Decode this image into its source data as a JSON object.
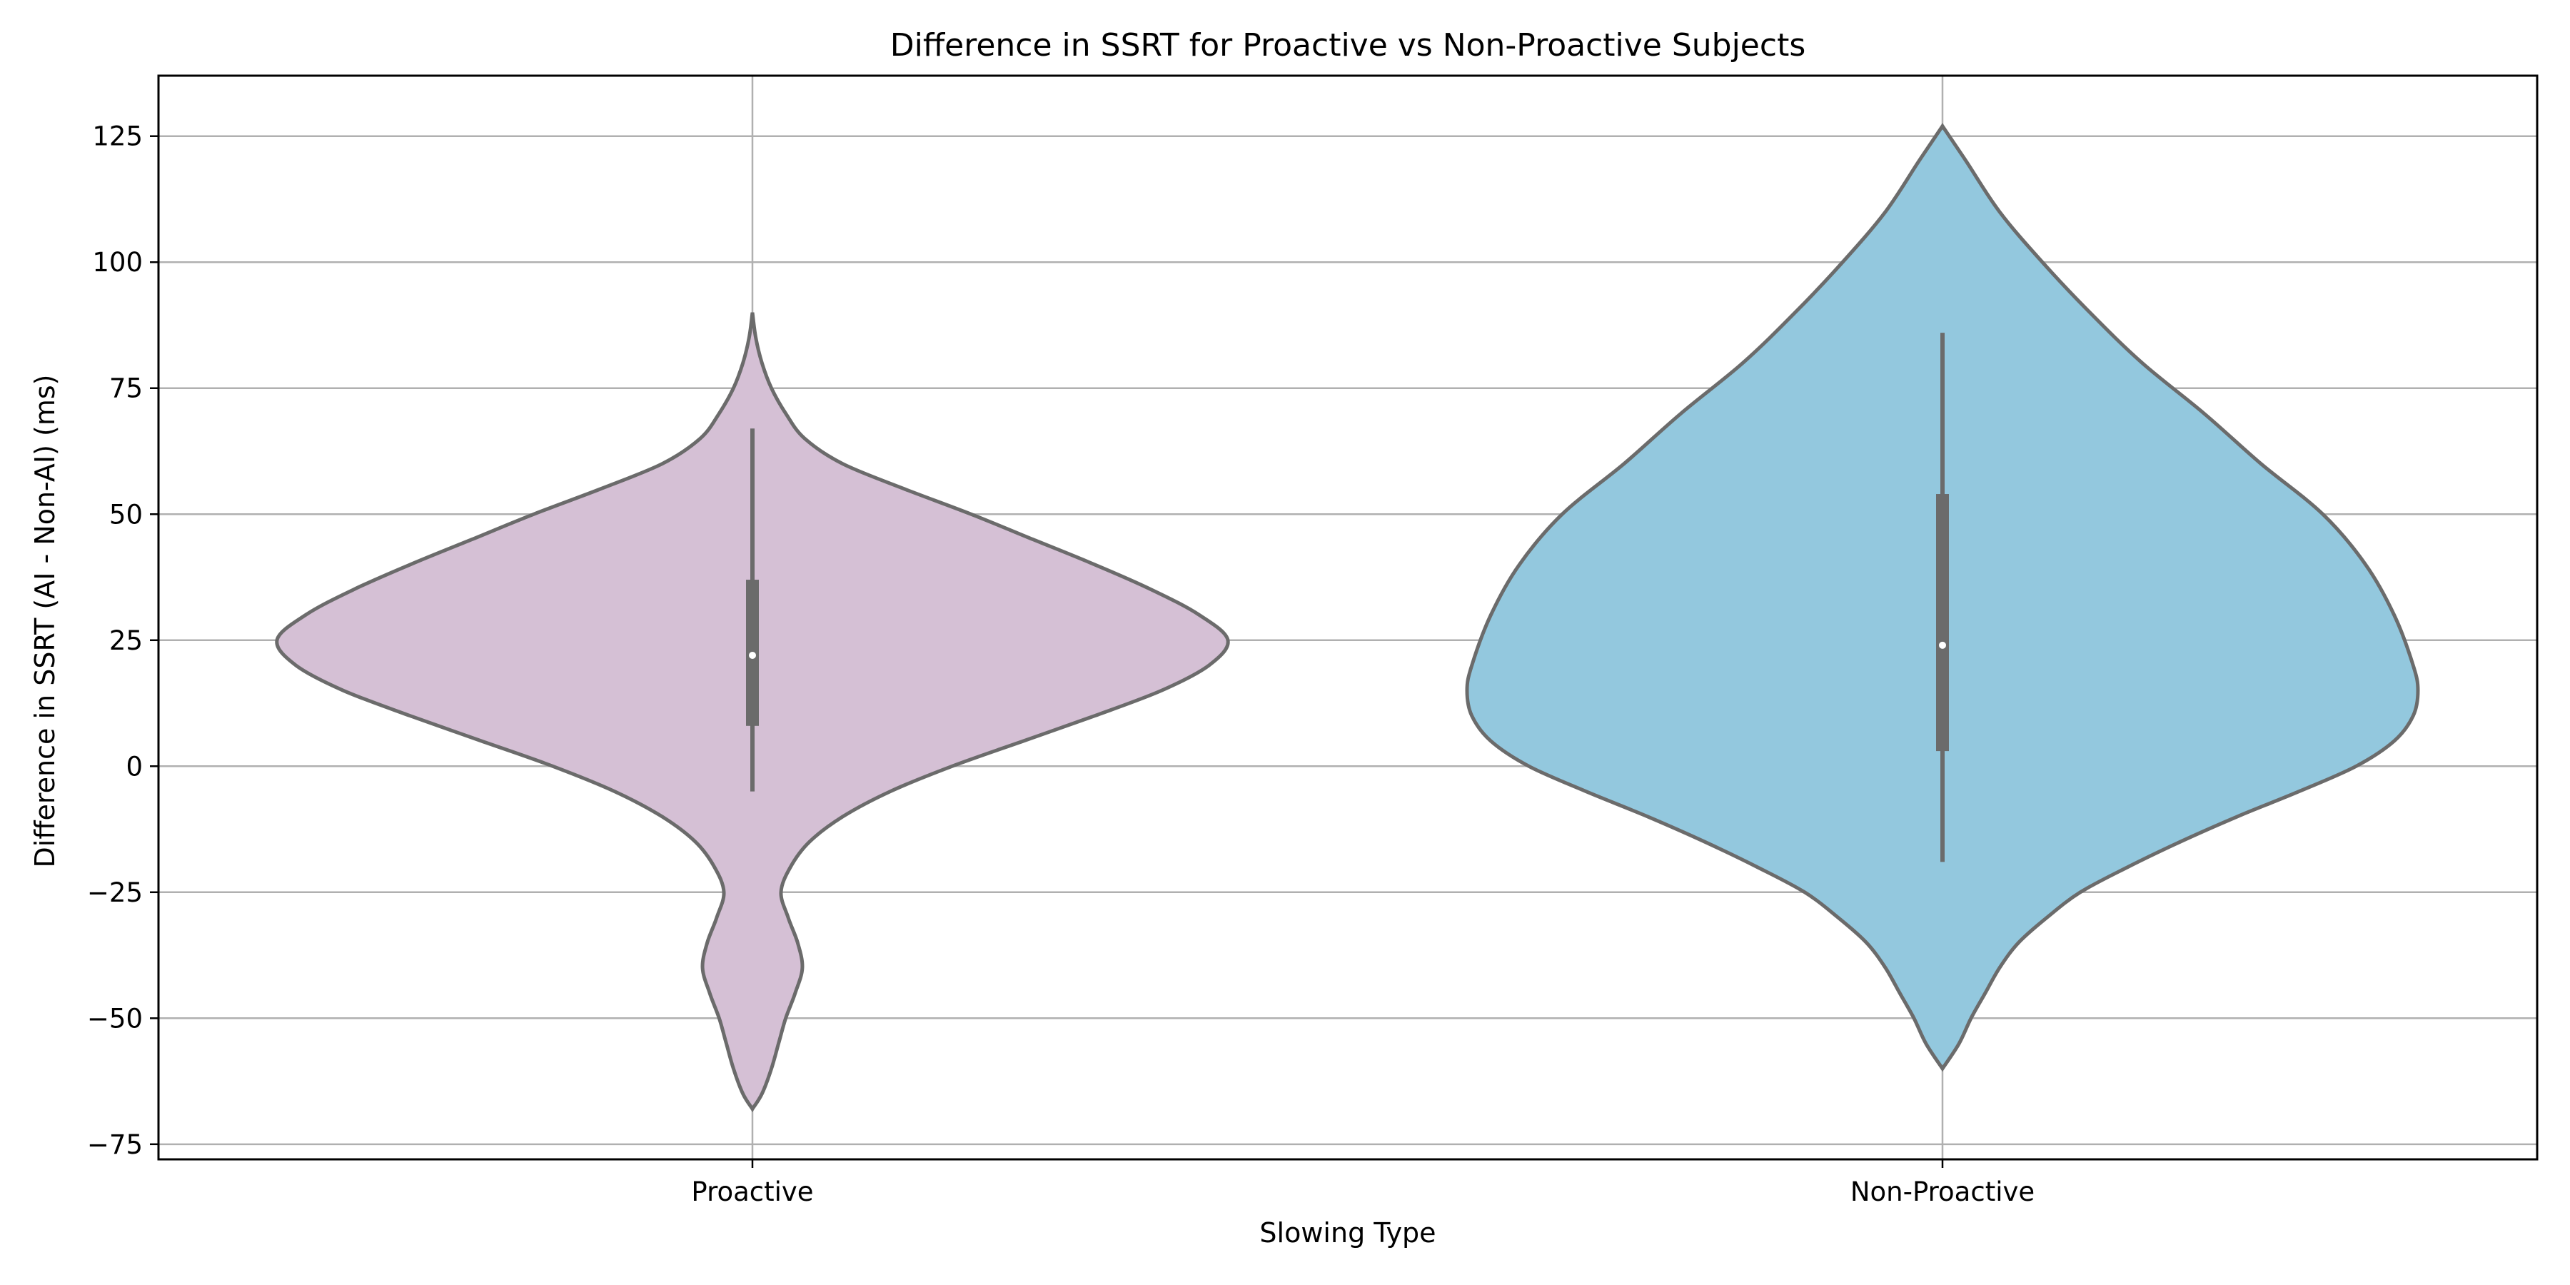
{
  "chart_data": {
    "type": "violin",
    "title": "Difference in SSRT for Proactive vs Non-Proactive Subjects",
    "xlabel": "Slowing Type",
    "ylabel": "Difference in SSRT (AI - Non-AI) (ms)",
    "categories": [
      "Proactive",
      "Non-Proactive"
    ],
    "ylim": [
      -78,
      137
    ],
    "yticks": [
      -75,
      -50,
      -25,
      0,
      25,
      50,
      75,
      100,
      125
    ],
    "ytick_labels": [
      "−75",
      "−50",
      "−25",
      "0",
      "25",
      "50",
      "75",
      "100",
      "125"
    ],
    "grid": true,
    "series": [
      {
        "category": "Proactive",
        "color": "#d5c0d5",
        "range": [
          -68,
          90
        ],
        "whisker": [
          -5,
          67
        ],
        "quartiles": [
          8,
          37
        ],
        "median": 22,
        "density": [
          [
            90,
            0.0
          ],
          [
            85,
            0.007
          ],
          [
            80,
            0.02
          ],
          [
            75,
            0.04
          ],
          [
            70,
            0.07
          ],
          [
            65,
            0.11
          ],
          [
            60,
            0.19
          ],
          [
            55,
            0.32
          ],
          [
            50,
            0.46
          ],
          [
            45,
            0.59
          ],
          [
            40,
            0.72
          ],
          [
            35,
            0.84
          ],
          [
            30,
            0.94
          ],
          [
            25,
            1.0
          ],
          [
            20,
            0.96
          ],
          [
            15,
            0.86
          ],
          [
            10,
            0.72
          ],
          [
            5,
            0.57
          ],
          [
            0,
            0.42
          ],
          [
            -5,
            0.29
          ],
          [
            -10,
            0.19
          ],
          [
            -15,
            0.12
          ],
          [
            -20,
            0.08
          ],
          [
            -25,
            0.06
          ],
          [
            -30,
            0.075
          ],
          [
            -35,
            0.095
          ],
          [
            -40,
            0.105
          ],
          [
            -45,
            0.09
          ],
          [
            -50,
            0.07
          ],
          [
            -55,
            0.055
          ],
          [
            -60,
            0.04
          ],
          [
            -65,
            0.02
          ],
          [
            -68,
            0.0
          ]
        ]
      },
      {
        "category": "Non-Proactive",
        "color": "#93c8de",
        "range": [
          -60,
          127
        ],
        "whisker": [
          -19,
          86
        ],
        "quartiles": [
          3,
          54
        ],
        "median": 24,
        "density": [
          [
            127,
            0.0
          ],
          [
            120,
            0.05
          ],
          [
            110,
            0.12
          ],
          [
            100,
            0.21
          ],
          [
            90,
            0.31
          ],
          [
            80,
            0.42
          ],
          [
            70,
            0.55
          ],
          [
            60,
            0.67
          ],
          [
            50,
            0.8
          ],
          [
            40,
            0.89
          ],
          [
            30,
            0.95
          ],
          [
            20,
            0.99
          ],
          [
            15,
            1.0
          ],
          [
            10,
            0.99
          ],
          [
            5,
            0.95
          ],
          [
            0,
            0.87
          ],
          [
            -5,
            0.75
          ],
          [
            -10,
            0.62
          ],
          [
            -15,
            0.5
          ],
          [
            -20,
            0.39
          ],
          [
            -25,
            0.29
          ],
          [
            -30,
            0.22
          ],
          [
            -35,
            0.16
          ],
          [
            -40,
            0.12
          ],
          [
            -45,
            0.09
          ],
          [
            -50,
            0.06
          ],
          [
            -55,
            0.035
          ],
          [
            -60,
            0.0
          ]
        ]
      }
    ]
  }
}
